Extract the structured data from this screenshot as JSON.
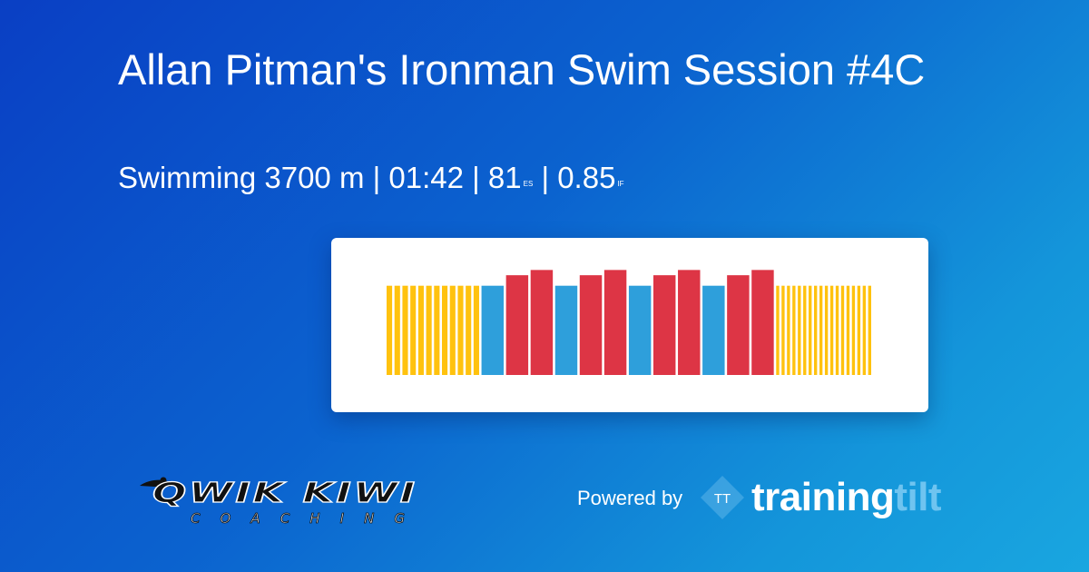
{
  "header": {
    "title": "Allan Pitman's Ironman Swim Session #4C",
    "sport": "Swimming",
    "distance": "3700 m",
    "duration": "01:42",
    "es_value": "81",
    "es_unit": "ES",
    "if_value": "0.85",
    "if_unit": "IF",
    "separator": "|"
  },
  "footer": {
    "coach_logo_line1": "QWIK KIWI",
    "coach_logo_line2": "COACHING",
    "powered_by": "Powered by",
    "brand_icon_text": "TT",
    "brand_name_a": "training",
    "brand_name_b": "tilt"
  },
  "colors": {
    "warmup": "#ffc20e",
    "recovery": "#2e9fdb",
    "effort": "#dd3545",
    "card_bg": "#ffffff"
  },
  "chart_data": {
    "type": "bar",
    "title": "",
    "xlabel": "",
    "ylabel": "",
    "ylim": [
      0,
      1.15
    ],
    "series": [
      {
        "zone": "warmup",
        "count": 12,
        "level": 0.85,
        "width": 1
      },
      {
        "zone": "recovery",
        "count": 1,
        "level": 0.85,
        "width": 4
      },
      {
        "zone": "effort",
        "count": 1,
        "level": 0.95,
        "width": 4
      },
      {
        "zone": "effort",
        "count": 1,
        "level": 1.0,
        "width": 4
      },
      {
        "zone": "recovery",
        "count": 1,
        "level": 0.85,
        "width": 4
      },
      {
        "zone": "effort",
        "count": 1,
        "level": 0.95,
        "width": 4
      },
      {
        "zone": "effort",
        "count": 1,
        "level": 1.0,
        "width": 4
      },
      {
        "zone": "recovery",
        "count": 1,
        "level": 0.85,
        "width": 4
      },
      {
        "zone": "effort",
        "count": 1,
        "level": 0.95,
        "width": 4
      },
      {
        "zone": "effort",
        "count": 1,
        "level": 1.0,
        "width": 4
      },
      {
        "zone": "recovery",
        "count": 1,
        "level": 0.85,
        "width": 4
      },
      {
        "zone": "effort",
        "count": 1,
        "level": 0.95,
        "width": 4
      },
      {
        "zone": "effort",
        "count": 1,
        "level": 1.0,
        "width": 4
      },
      {
        "zone": "warmup",
        "count": 18,
        "level": 0.85,
        "width": 0.55
      }
    ]
  }
}
